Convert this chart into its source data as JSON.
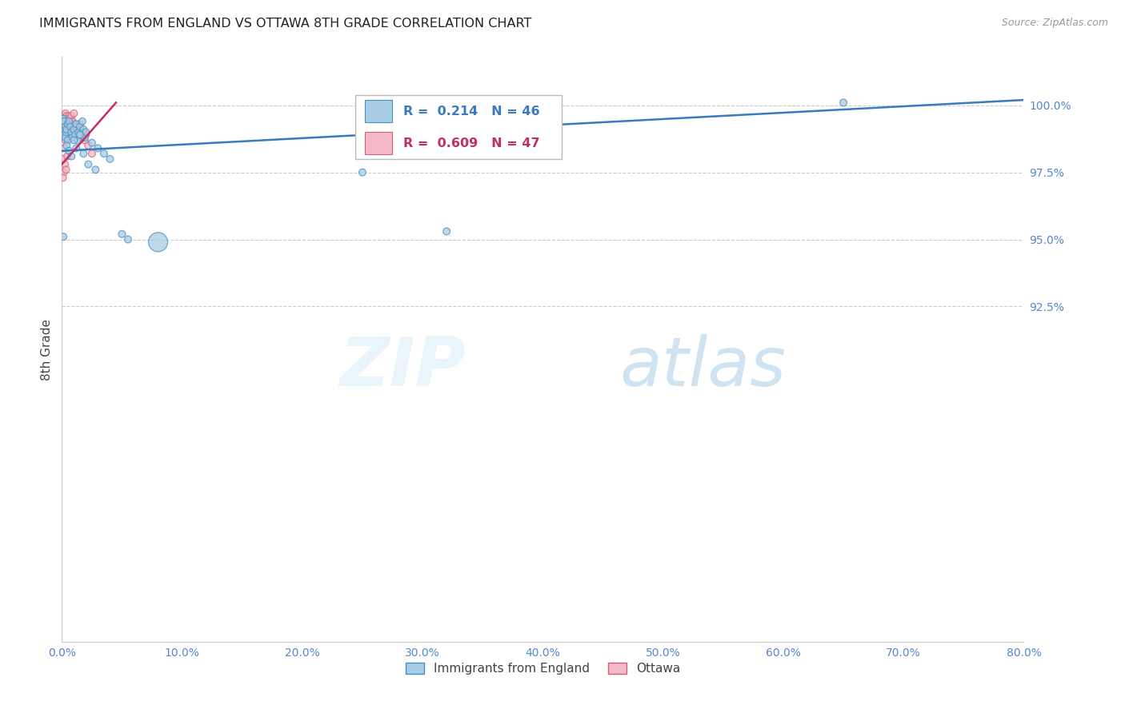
{
  "title": "IMMIGRANTS FROM ENGLAND VS OTTAWA 8TH GRADE CORRELATION CHART",
  "source": "Source: ZipAtlas.com",
  "xlabel_blue": "Immigrants from England",
  "xlabel_pink": "Ottawa",
  "ylabel": "8th Grade",
  "watermark_zip": "ZIP",
  "watermark_atlas": "atlas",
  "blue_R": 0.214,
  "blue_N": 46,
  "pink_R": 0.609,
  "pink_N": 47,
  "xlim": [
    0.0,
    80.0
  ],
  "ylim": [
    80.0,
    101.8
  ],
  "yticks": [
    92.5,
    95.0,
    97.5,
    100.0
  ],
  "xticks": [
    0.0,
    10.0,
    20.0,
    30.0,
    40.0,
    50.0,
    60.0,
    70.0,
    80.0
  ],
  "blue_color": "#a8cce4",
  "pink_color": "#f4b8c8",
  "blue_edge_color": "#4a90c4",
  "pink_edge_color": "#d4607a",
  "blue_line_color": "#3a7abf",
  "pink_line_color": "#c03060",
  "title_color": "#222222",
  "axis_label_color": "#444444",
  "tick_color": "#5588cc",
  "grid_color": "#cccccc",
  "blue_scatter_x": [
    0.1,
    0.15,
    0.2,
    0.2,
    0.25,
    0.3,
    0.3,
    0.35,
    0.4,
    0.5,
    0.5,
    0.6,
    0.7,
    0.8,
    0.9,
    1.0,
    1.1,
    1.2,
    1.3,
    1.4,
    1.5,
    1.6,
    1.7,
    1.8,
    1.9,
    2.0,
    2.5,
    3.0,
    3.5,
    4.0,
    5.0,
    5.5,
    0.4,
    0.6,
    0.8,
    1.0,
    1.2,
    1.5,
    1.8,
    2.2,
    2.8,
    25.0,
    32.0,
    0.12,
    65.0,
    8.0
  ],
  "blue_scatter_y": [
    99.5,
    99.3,
    99.4,
    98.9,
    99.1,
    99.2,
    98.8,
    99.0,
    99.1,
    99.3,
    98.7,
    99.4,
    99.2,
    99.0,
    98.8,
    99.1,
    98.9,
    99.3,
    98.7,
    99.0,
    99.2,
    98.9,
    99.4,
    99.1,
    98.8,
    99.0,
    98.6,
    98.4,
    98.2,
    98.0,
    95.2,
    95.0,
    98.5,
    98.3,
    98.1,
    98.7,
    98.4,
    98.9,
    98.2,
    97.8,
    97.6,
    97.5,
    95.3,
    95.1,
    100.1,
    94.9
  ],
  "blue_scatter_sizes": [
    40,
    40,
    40,
    40,
    40,
    40,
    40,
    40,
    40,
    40,
    40,
    40,
    40,
    40,
    40,
    40,
    40,
    40,
    40,
    40,
    40,
    40,
    40,
    40,
    40,
    40,
    40,
    40,
    40,
    40,
    40,
    40,
    40,
    40,
    40,
    40,
    40,
    40,
    40,
    40,
    40,
    40,
    40,
    40,
    40,
    300
  ],
  "pink_scatter_x": [
    0.05,
    0.1,
    0.15,
    0.2,
    0.25,
    0.3,
    0.35,
    0.4,
    0.45,
    0.5,
    0.55,
    0.6,
    0.65,
    0.7,
    0.75,
    0.8,
    0.9,
    1.0,
    1.1,
    1.2,
    1.3,
    1.4,
    1.5,
    1.6,
    1.7,
    1.8,
    1.9,
    2.0,
    2.2,
    2.5,
    0.1,
    0.2,
    0.3,
    0.4,
    0.5,
    0.6,
    0.7,
    0.8,
    0.9,
    1.0,
    1.2,
    1.5,
    0.15,
    0.25,
    0.35,
    0.08,
    0.45
  ],
  "pink_scatter_y": [
    99.0,
    99.2,
    99.5,
    99.6,
    99.4,
    99.7,
    99.5,
    99.6,
    99.4,
    99.5,
    99.3,
    99.6,
    99.4,
    99.5,
    99.3,
    99.4,
    99.1,
    99.3,
    99.0,
    99.2,
    98.9,
    99.1,
    99.3,
    99.0,
    98.8,
    99.0,
    98.7,
    98.9,
    98.5,
    98.2,
    98.0,
    98.4,
    98.7,
    99.0,
    99.2,
    99.5,
    99.3,
    99.6,
    99.4,
    99.7,
    99.2,
    98.8,
    97.5,
    97.8,
    97.6,
    97.3,
    98.1
  ],
  "pink_scatter_sizes": [
    40,
    40,
    40,
    40,
    40,
    40,
    40,
    40,
    40,
    40,
    40,
    40,
    40,
    40,
    40,
    40,
    40,
    40,
    40,
    40,
    40,
    40,
    40,
    40,
    40,
    40,
    40,
    40,
    40,
    40,
    40,
    40,
    40,
    40,
    40,
    40,
    40,
    40,
    40,
    40,
    40,
    40,
    40,
    40,
    40,
    40,
    40
  ],
  "blue_trendline_x": [
    0.0,
    80.0
  ],
  "blue_trendline_y": [
    98.3,
    100.2
  ],
  "pink_trendline_x": [
    0.0,
    4.5
  ],
  "pink_trendline_y": [
    97.8,
    100.1
  ]
}
